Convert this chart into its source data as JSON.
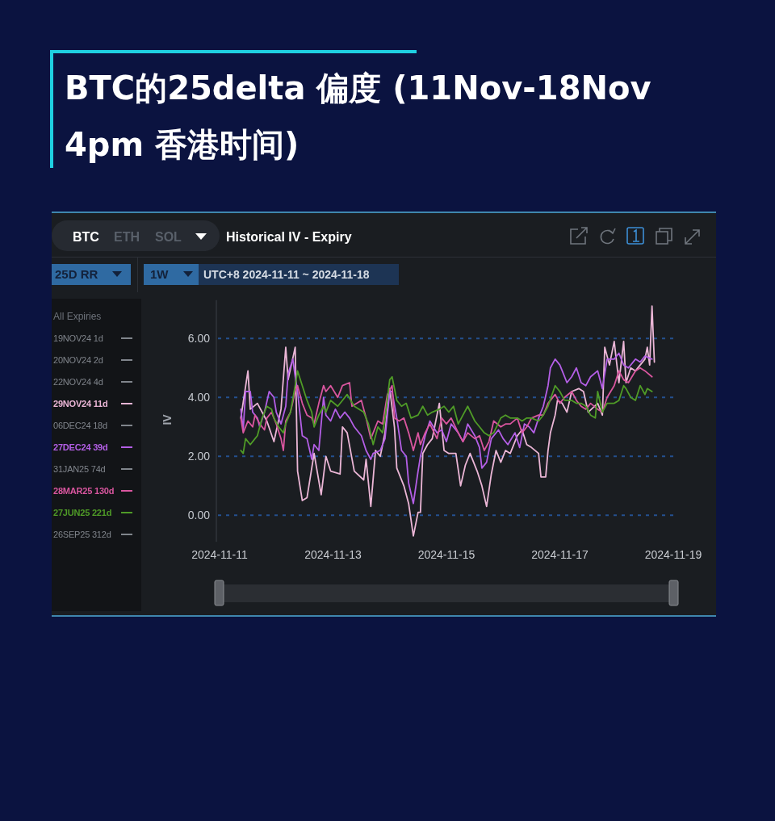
{
  "chart_data": {
    "type": "line",
    "title": "BTC的25delta 偏度 (11Nov-18Nov 4pm 香港时间)",
    "subtitle": "Historical IV - Expiry",
    "ylabel": "IV",
    "legend_title": "All Expiries",
    "legend": "left",
    "grid": "y",
    "annotations": [
      "BTC",
      "ETH",
      "SOL",
      "25D RR",
      "1W",
      "UTC+8 2024-11-11 ~ 2024-11-18"
    ],
    "xlim": [
      "2024-11-11",
      "2024-11-19"
    ],
    "xticks": [
      "2024-11-11",
      "2024-11-13",
      "2024-11-15",
      "2024-11-17",
      "2024-11-19"
    ],
    "ylim": [
      -0.9,
      7.3
    ],
    "yticks": [
      {
        "value": 0,
        "label": "0.00"
      },
      {
        "value": 2,
        "label": "2.00"
      },
      {
        "value": 4,
        "label": "4.00"
      },
      {
        "value": 6,
        "label": "6.00"
      }
    ],
    "series": [
      {
        "name": "19NOV24 1d",
        "color": "#80858c"
      },
      {
        "name": "20NOV24 2d",
        "color": "#80858c"
      },
      {
        "name": "22NOV24 4d",
        "color": "#80858c"
      },
      {
        "name": "29NOV24 11d",
        "color": "#ebb6d6",
        "x": [
          "2024-11-11T09:00",
          "2024-11-11T12:00",
          "2024-11-11T13:00",
          "2024-11-11T16:00",
          "2024-11-11T20:00",
          "2024-11-11T23:00",
          "2024-11-12T02:00",
          "2024-11-12T04:00",
          "2024-11-12T05:00",
          "2024-11-12T08:00",
          "2024-11-12T09:00",
          "2024-11-12T11:00",
          "2024-11-12T13:00",
          "2024-11-12T15:00",
          "2024-11-12T16:00",
          "2024-11-12T19:00",
          "2024-11-12T21:00",
          "2024-11-12T23:00",
          "2024-11-13T03:00",
          "2024-11-13T04:00",
          "2024-11-13T06:00",
          "2024-11-13T09:00",
          "2024-11-13T13:00",
          "2024-11-13T14:00",
          "2024-11-13T16:00",
          "2024-11-13T18:00",
          "2024-11-13T20:00",
          "2024-11-13T22:00",
          "2024-11-14T00:00",
          "2024-11-14T02:00",
          "2024-11-14T03:00",
          "2024-11-14T06:00",
          "2024-11-14T08:00",
          "2024-11-14T10:00",
          "2024-11-14T12:00",
          "2024-11-14T13:00",
          "2024-11-14T14:00",
          "2024-11-14T16:00",
          "2024-11-14T18:00",
          "2024-11-14T21:00",
          "2024-11-14T23:00",
          "2024-11-15T01:00",
          "2024-11-15T04:00",
          "2024-11-15T06:00",
          "2024-11-15T08:00",
          "2024-11-15T10:00",
          "2024-11-15T13:00",
          "2024-11-15T15:00",
          "2024-11-15T17:00",
          "2024-11-15T19:00",
          "2024-11-15T21:00",
          "2024-11-15T23:00",
          "2024-11-16T01:00",
          "2024-11-16T03:00",
          "2024-11-16T06:00",
          "2024-11-16T08:00",
          "2024-11-16T10:00",
          "2024-11-16T12:00",
          "2024-11-16T15:00",
          "2024-11-16T16:00",
          "2024-11-16T18:00",
          "2024-11-16T19:00",
          "2024-11-16T20:00",
          "2024-11-16T22:00",
          "2024-11-16T23:00",
          "2024-11-17T01:00",
          "2024-11-17T03:00",
          "2024-11-17T05:00",
          "2024-11-17T08:00",
          "2024-11-17T10:00",
          "2024-11-17T12:00",
          "2024-11-17T16:00",
          "2024-11-17T18:00",
          "2024-11-17T19:00",
          "2024-11-17T21:00",
          "2024-11-17T23:00",
          "2024-11-18T01:00",
          "2024-11-18T03:00",
          "2024-11-18T04:00",
          "2024-11-18T06:00",
          "2024-11-18T08:00",
          "2024-11-18T10:00",
          "2024-11-18T12:00",
          "2024-11-18T13:00",
          "2024-11-18T14:00",
          "2024-11-18T15:00",
          "2024-11-18T16:00"
        ],
        "values": [
          3.3,
          4.9,
          3.6,
          3.8,
          3.2,
          2.5,
          3.6,
          5.7,
          4.6,
          5.7,
          1.5,
          0.5,
          0.6,
          1.6,
          2.1,
          0.7,
          2.0,
          1.5,
          1.4,
          3.0,
          2.8,
          1.5,
          1.2,
          1.9,
          0.3,
          2.2,
          2.0,
          2.8,
          4.3,
          3.0,
          1.6,
          1.0,
          0.4,
          -0.7,
          0.1,
          0.1,
          2.1,
          2.4,
          2.6,
          3.8,
          2.2,
          2.1,
          2.1,
          1.0,
          1.7,
          2.1,
          1.5,
          1.0,
          0.3,
          1.4,
          2.2,
          1.8,
          2.2,
          2.1,
          2.7,
          2.9,
          2.4,
          2.3,
          2.1,
          1.3,
          1.3,
          2.2,
          2.8,
          3.4,
          3.9,
          3.8,
          3.5,
          4.2,
          4.3,
          4.2,
          3.5,
          3.8,
          3.4,
          5.7,
          5.1,
          5.9,
          4.5,
          5.9,
          4.5,
          5.0,
          4.9,
          5.1,
          5.3,
          5.7,
          5.1,
          7.1,
          5.2
        ]
      },
      {
        "name": "06DEC24 18d",
        "color": "#80858c"
      },
      {
        "name": "27DEC24 39d",
        "color": "#b45fe6",
        "x": [
          "2024-11-11T09:00",
          "2024-11-11T10:00",
          "2024-11-11T11:00",
          "2024-11-11T13:00",
          "2024-11-11T14:00",
          "2024-11-11T16:00",
          "2024-11-11T17:00",
          "2024-11-11T19:00",
          "2024-11-11T21:00",
          "2024-11-11T23:00",
          "2024-11-12T00:00",
          "2024-11-12T02:00",
          "2024-11-12T04:00",
          "2024-11-12T05:00",
          "2024-11-12T07:00",
          "2024-11-12T08:00",
          "2024-11-12T09:00",
          "2024-11-12T11:00",
          "2024-11-12T13:00",
          "2024-11-12T15:00",
          "2024-11-12T16:00",
          "2024-11-12T18:00",
          "2024-11-12T20:00",
          "2024-11-12T21:00",
          "2024-11-12T23:00",
          "2024-11-13T01:00",
          "2024-11-13T03:00",
          "2024-11-13T05:00",
          "2024-11-13T07:00",
          "2024-11-13T09:00",
          "2024-11-13T12:00",
          "2024-11-13T14:00",
          "2024-11-13T16:00",
          "2024-11-13T17:00",
          "2024-11-13T20:00",
          "2024-11-13T22:00",
          "2024-11-14T00:00",
          "2024-11-14T01:00",
          "2024-11-14T03:00",
          "2024-11-14T05:00",
          "2024-11-14T07:00",
          "2024-11-14T08:00",
          "2024-11-14T10:00",
          "2024-11-14T12:00",
          "2024-11-14T13:00",
          "2024-11-14T15:00",
          "2024-11-14T17:00",
          "2024-11-14T20:00",
          "2024-11-14T22:00",
          "2024-11-15T00:00",
          "2024-11-15T02:00",
          "2024-11-15T05:00",
          "2024-11-15T07:00",
          "2024-11-15T09:00",
          "2024-11-15T12:00",
          "2024-11-15T14:00",
          "2024-11-15T15:00",
          "2024-11-15T17:00",
          "2024-11-15T19:00",
          "2024-11-15T22:00",
          "2024-11-16T00:00",
          "2024-11-16T02:00",
          "2024-11-16T05:00",
          "2024-11-16T07:00",
          "2024-11-16T09:00",
          "2024-11-16T11:00",
          "2024-11-16T13:00",
          "2024-11-16T15:00",
          "2024-11-16T17:00",
          "2024-11-16T19:00",
          "2024-11-16T20:00",
          "2024-11-16T22:00",
          "2024-11-17T00:00",
          "2024-11-17T01:00",
          "2024-11-17T03:00",
          "2024-11-17T05:00",
          "2024-11-17T07:00",
          "2024-11-17T09:00",
          "2024-11-17T11:00",
          "2024-11-17T13:00",
          "2024-11-17T16:00",
          "2024-11-17T18:00",
          "2024-11-17T20:00",
          "2024-11-17T23:00",
          "2024-11-18T01:00",
          "2024-11-18T03:00",
          "2024-11-18T05:00",
          "2024-11-18T08:00",
          "2024-11-18T10:00",
          "2024-11-18T12:00",
          "2024-11-18T15:00"
        ],
        "values": [
          3.6,
          2.9,
          4.2,
          4.2,
          3.5,
          3.3,
          3.0,
          3.5,
          4.2,
          4.0,
          3.5,
          3.1,
          3.7,
          4.8,
          5.3,
          4.7,
          4.2,
          2.7,
          2.6,
          1.9,
          2.4,
          2.2,
          4.0,
          3.4,
          3.2,
          3.6,
          3.3,
          3.5,
          3.3,
          3.0,
          2.7,
          2.2,
          1.9,
          2.1,
          2.2,
          2.6,
          4.2,
          4.2,
          3.3,
          2.2,
          2.0,
          1.1,
          0.4,
          1.5,
          2.0,
          2.7,
          3.2,
          2.8,
          2.9,
          2.5,
          3.1,
          2.8,
          2.5,
          3.1,
          2.7,
          2.3,
          1.6,
          1.8,
          2.6,
          2.9,
          2.6,
          2.4,
          2.8,
          2.3,
          3.1,
          3.0,
          2.8,
          3.3,
          3.7,
          4.4,
          5.0,
          5.3,
          5.1,
          4.9,
          4.5,
          4.7,
          5.0,
          4.5,
          4.4,
          4.7,
          4.9,
          4.3,
          5.3,
          5.3,
          5.5,
          5.1,
          5.0,
          5.3,
          5.2,
          5.4,
          5.3
        ]
      },
      {
        "name": "31JAN25 74d",
        "color": "#80858c"
      },
      {
        "name": "28MAR25 130d",
        "color": "#d9569f",
        "x": [
          "2024-11-11T09:00",
          "2024-11-11T10:00",
          "2024-11-11T12:00",
          "2024-11-11T14:00",
          "2024-11-11T15:00",
          "2024-11-11T17:00",
          "2024-11-11T19:00",
          "2024-11-11T20:00",
          "2024-11-11T22:00",
          "2024-11-12T00:00",
          "2024-11-12T02:00",
          "2024-11-12T03:00",
          "2024-11-12T04:00",
          "2024-11-12T06:00",
          "2024-11-12T08:00",
          "2024-11-12T09:00",
          "2024-11-12T11:00",
          "2024-11-12T13:00",
          "2024-11-12T15:00",
          "2024-11-12T16:00",
          "2024-11-12T18:00",
          "2024-11-12T20:00",
          "2024-11-12T21:00",
          "2024-11-12T23:00",
          "2024-11-13T02:00",
          "2024-11-13T04:00",
          "2024-11-13T07:00",
          "2024-11-13T08:00",
          "2024-11-13T12:00",
          "2024-11-13T14:00",
          "2024-11-13T16:00",
          "2024-11-13T19:00",
          "2024-11-13T21:00",
          "2024-11-13T23:00",
          "2024-11-14T01:00",
          "2024-11-14T02:00",
          "2024-11-14T04:00",
          "2024-11-14T06:00",
          "2024-11-14T08:00",
          "2024-11-14T10:00",
          "2024-11-14T12:00",
          "2024-11-14T13:00",
          "2024-11-14T15:00",
          "2024-11-14T17:00",
          "2024-11-14T20:00",
          "2024-11-14T22:00",
          "2024-11-15T00:00",
          "2024-11-15T02:00",
          "2024-11-15T05:00",
          "2024-11-15T07:00",
          "2024-11-15T09:00",
          "2024-11-15T12:00",
          "2024-11-15T14:00",
          "2024-11-15T16:00",
          "2024-11-15T18:00",
          "2024-11-15T20:00",
          "2024-11-15T23:00",
          "2024-11-16T01:00",
          "2024-11-16T03:00",
          "2024-11-16T06:00",
          "2024-11-16T08:00",
          "2024-11-16T10:00",
          "2024-11-16T12:00",
          "2024-11-16T15:00",
          "2024-11-16T17:00",
          "2024-11-16T19:00",
          "2024-11-16T22:00",
          "2024-11-17T00:00",
          "2024-11-17T02:00",
          "2024-11-17T05:00",
          "2024-11-17T07:00",
          "2024-11-17T09:00",
          "2024-11-17T11:00",
          "2024-11-17T13:00",
          "2024-11-17T16:00",
          "2024-11-17T18:00",
          "2024-11-17T20:00",
          "2024-11-17T23:00",
          "2024-11-18T01:00",
          "2024-11-18T03:00",
          "2024-11-18T05:00",
          "2024-11-18T08:00",
          "2024-11-18T10:00",
          "2024-11-18T12:00",
          "2024-11-18T15:00"
        ],
        "values": [
          3.3,
          2.8,
          3.2,
          3.0,
          3.4,
          3.1,
          2.9,
          3.3,
          3.5,
          3.1,
          2.6,
          2.2,
          3.2,
          3.5,
          4.2,
          4.4,
          3.8,
          3.4,
          3.3,
          3.1,
          3.8,
          4.4,
          4.2,
          4.4,
          4.0,
          4.4,
          4.5,
          3.7,
          3.9,
          3.3,
          2.6,
          3.2,
          3.1,
          4.1,
          4.4,
          3.3,
          3.2,
          3.3,
          2.8,
          2.2,
          2.8,
          2.4,
          2.8,
          3.1,
          2.6,
          3.3,
          3.1,
          3.3,
          2.8,
          2.5,
          2.8,
          2.6,
          2.7,
          2.2,
          2.5,
          3.2,
          3.0,
          3.1,
          3.1,
          3.3,
          2.8,
          3.0,
          3.3,
          3.4,
          3.4,
          3.8,
          4.1,
          3.8,
          4.0,
          4.2,
          3.9,
          3.7,
          3.6,
          3.8,
          3.6,
          3.5,
          4.0,
          4.4,
          4.9,
          4.6,
          4.5,
          4.9,
          5.0,
          4.9,
          4.7
        ]
      },
      {
        "name": "27JUN25 221d",
        "color": "#4f9b27",
        "x": [
          "2024-11-11T09:00",
          "2024-11-11T10:00",
          "2024-11-11T11:00",
          "2024-11-11T13:00",
          "2024-11-11T15:00",
          "2024-11-11T16:00",
          "2024-11-11T18:00",
          "2024-11-11T20:00",
          "2024-11-11T22:00",
          "2024-11-11T23:00",
          "2024-11-12T01:00",
          "2024-11-12T03:00",
          "2024-11-12T04:00",
          "2024-11-12T06:00",
          "2024-11-12T08:00",
          "2024-11-12T09:00",
          "2024-11-12T11:00",
          "2024-11-12T13:00",
          "2024-11-12T15:00",
          "2024-11-12T16:00",
          "2024-11-12T18:00",
          "2024-11-12T20:00",
          "2024-11-12T21:00",
          "2024-11-12T23:00",
          "2024-11-13T02:00",
          "2024-11-13T04:00",
          "2024-11-13T06:00",
          "2024-11-13T09:00",
          "2024-11-13T13:00",
          "2024-11-13T15:00",
          "2024-11-13T17:00",
          "2024-11-13T19:00",
          "2024-11-13T21:00",
          "2024-11-13T22:00",
          "2024-11-14T00:00",
          "2024-11-14T01:00",
          "2024-11-14T03:00",
          "2024-11-14T05:00",
          "2024-11-14T07:00",
          "2024-11-14T09:00",
          "2024-11-14T12:00",
          "2024-11-14T14:00",
          "2024-11-14T16:00",
          "2024-11-14T18:00",
          "2024-11-14T21:00",
          "2024-11-14T23:00",
          "2024-11-15T01:00",
          "2024-11-15T03:00",
          "2024-11-15T05:00",
          "2024-11-15T07:00",
          "2024-11-15T09:00",
          "2024-11-15T12:00",
          "2024-11-15T14:00",
          "2024-11-15T16:00",
          "2024-11-15T18:00",
          "2024-11-15T20:00",
          "2024-11-15T23:00",
          "2024-11-16T01:00",
          "2024-11-16T03:00",
          "2024-11-16T06:00",
          "2024-11-16T08:00",
          "2024-11-16T10:00",
          "2024-11-16T12:00",
          "2024-11-16T15:00",
          "2024-11-16T17:00",
          "2024-11-16T19:00",
          "2024-11-16T22:00",
          "2024-11-17T00:00",
          "2024-11-17T02:00",
          "2024-11-17T05:00",
          "2024-11-17T07:00",
          "2024-11-17T09:00",
          "2024-11-17T11:00",
          "2024-11-17T13:00",
          "2024-11-17T15:00",
          "2024-11-17T16:00",
          "2024-11-17T18:00",
          "2024-11-17T20:00",
          "2024-11-17T23:00",
          "2024-11-18T01:00",
          "2024-11-18T03:00",
          "2024-11-18T04:00",
          "2024-11-18T06:00",
          "2024-11-18T08:00",
          "2024-11-18T10:00",
          "2024-11-18T12:00",
          "2024-11-18T13:00",
          "2024-11-18T15:00"
        ],
        "values": [
          2.2,
          2.1,
          2.6,
          2.4,
          2.6,
          2.7,
          3.3,
          3.7,
          3.6,
          3.3,
          3.0,
          2.8,
          3.1,
          3.5,
          4.4,
          4.9,
          4.4,
          3.9,
          3.5,
          3.0,
          3.4,
          3.7,
          3.5,
          3.9,
          3.7,
          3.9,
          4.1,
          3.7,
          3.5,
          3.1,
          2.4,
          3.0,
          2.8,
          3.3,
          4.6,
          4.7,
          3.9,
          3.7,
          3.8,
          3.3,
          3.4,
          3.7,
          3.4,
          3.5,
          3.6,
          3.7,
          3.5,
          3.7,
          3.1,
          3.4,
          3.7,
          3.2,
          3.0,
          2.8,
          2.7,
          2.8,
          3.3,
          3.4,
          3.3,
          3.3,
          3.2,
          3.3,
          3.3,
          3.2,
          3.4,
          3.7,
          4.4,
          4.2,
          3.9,
          3.9,
          3.8,
          3.8,
          3.7,
          3.4,
          3.3,
          4.2,
          3.5,
          3.8,
          3.8,
          3.9,
          4.4,
          4.3,
          4.0,
          3.9,
          4.4,
          4.1,
          4.3,
          4.2
        ]
      },
      {
        "name": "26SEP25 312d",
        "color": "#80858c"
      }
    ]
  }
}
